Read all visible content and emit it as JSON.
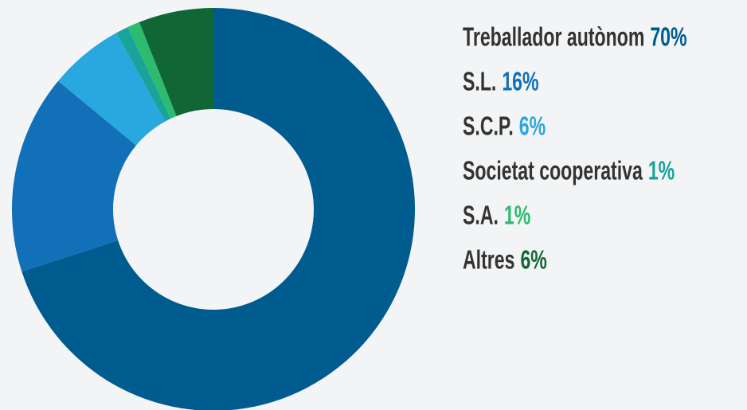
{
  "chart_data": {
    "type": "pie",
    "categories": [
      "Treballador autònom",
      "S.L.",
      "S.C.P.",
      "Societat cooperativa",
      "S.A.",
      "Altres"
    ],
    "values": [
      70,
      16,
      6,
      1,
      1,
      6
    ],
    "value_labels": [
      "70%",
      "16%",
      "6%",
      "1%",
      "1%",
      "6%"
    ],
    "colors": [
      "#005b8f",
      "#1170b8",
      "#29a8e0",
      "#1aa39a",
      "#2dbb6f",
      "#116635"
    ],
    "donut": true
  }
}
